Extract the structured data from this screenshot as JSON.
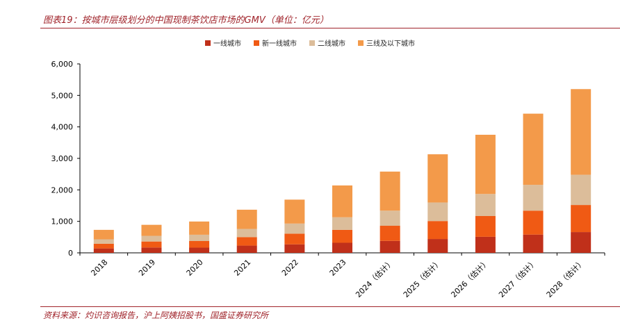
{
  "title": "图表19：按城市层级划分的中国现制茶饮店市场的GMV（单位：亿元）",
  "source": "资料来源：灼识咨询报告，沪上阿姨招股书，国盛证券研究所",
  "colors": {
    "tier1": "#c0301a",
    "newtier1": "#f05a14",
    "tier2": "#dcbd9a",
    "tier3": "#f39a4a"
  },
  "chart_data": {
    "type": "bar",
    "stacked": true,
    "categories": [
      "2018",
      "2019",
      "2020",
      "2021",
      "2022",
      "2023",
      "2024（估计）",
      "2025（估计）",
      "2026（估计）",
      "2027（估计）",
      "2028（估计）"
    ],
    "series": [
      {
        "name": "一线城市",
        "color_key": "tier1",
        "values": [
          140,
          170,
          165,
          230,
          270,
          320,
          380,
          440,
          510,
          580,
          660
        ]
      },
      {
        "name": "新一线城市",
        "color_key": "newtier1",
        "values": [
          150,
          190,
          210,
          270,
          340,
          410,
          480,
          570,
          660,
          760,
          860
        ]
      },
      {
        "name": "二线城市",
        "color_key": "tier2",
        "values": [
          140,
          180,
          200,
          260,
          320,
          400,
          480,
          590,
          700,
          820,
          960
        ]
      },
      {
        "name": "三线及以下城市",
        "color_key": "tier3",
        "values": [
          300,
          350,
          420,
          610,
          760,
          1010,
          1240,
          1530,
          1880,
          2260,
          2720
        ]
      }
    ],
    "ylim": [
      0,
      6000
    ],
    "yticks": [
      "0",
      "1,000",
      "2,000",
      "3,000",
      "4,000",
      "5,000",
      "6,000"
    ],
    "ytick_values": [
      0,
      1000,
      2000,
      3000,
      4000,
      5000,
      6000
    ],
    "legend_position": "top-center",
    "grid": false
  }
}
